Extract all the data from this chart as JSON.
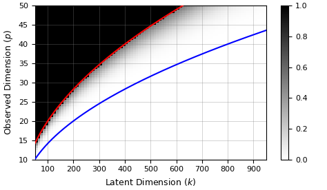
{
  "p_min": 10,
  "p_max": 50,
  "k_min": 50,
  "k_max": 950,
  "xlabel": "Latent Dimension ($k$)",
  "ylabel": "Observed Dimension ($p$)",
  "colorbar_ticks": [
    0,
    0.2,
    0.4,
    0.6,
    0.8,
    1
  ],
  "red_color": "#ff0000",
  "blue_color": "#0000ff",
  "grid_color": "#808080",
  "red_curve_coeff": 4.0,
  "blue_curve_coeff": 2.0,
  "n_k": 90,
  "n_p": 80,
  "transition_sharpness": 8.0
}
